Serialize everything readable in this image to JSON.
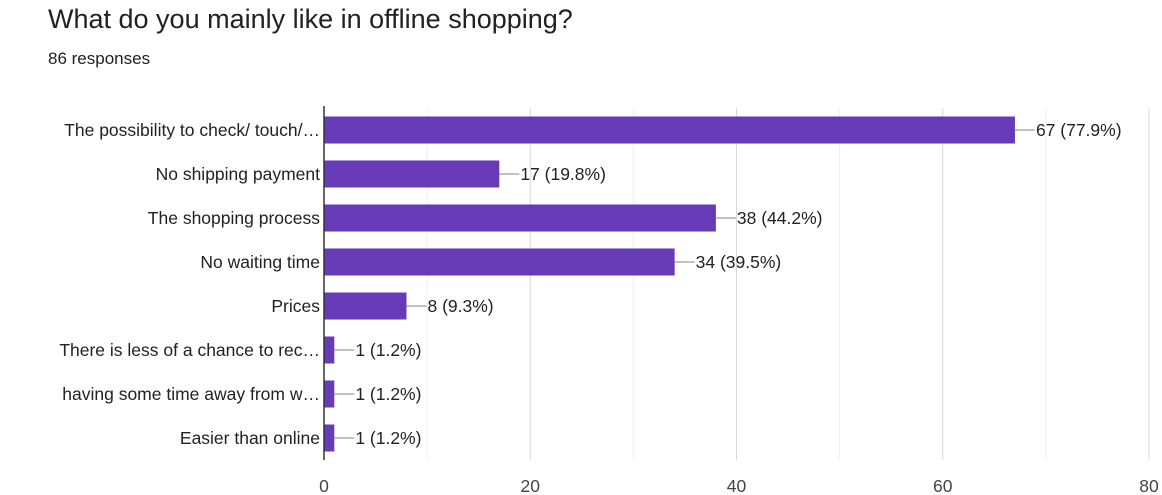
{
  "title": "What do you mainly like in offline shopping?",
  "subtitle": "86 responses",
  "chart_data": {
    "type": "bar",
    "orientation": "horizontal",
    "title": "What do you mainly like in offline shopping?",
    "subtitle": "86 responses",
    "categories": [
      "The possibility to check/ touch/…",
      "No shipping payment",
      "The shopping process",
      "No waiting time",
      "Prices",
      "There is less of a chance to rec…",
      "having some time away from w…",
      "Easier than online"
    ],
    "values": [
      67,
      17,
      38,
      34,
      8,
      1,
      1,
      1
    ],
    "value_labels": [
      "67 (77.9%)",
      "17 (19.8%)",
      "38 (44.2%)",
      "34 (39.5%)",
      "8 (9.3%)",
      "1 (1.2%)",
      "1 (1.2%)",
      "1 (1.2%)"
    ],
    "xlim": [
      0,
      80
    ],
    "xticks": [
      0,
      20,
      40,
      60,
      80
    ],
    "grid": true,
    "color": "#673ab7"
  }
}
